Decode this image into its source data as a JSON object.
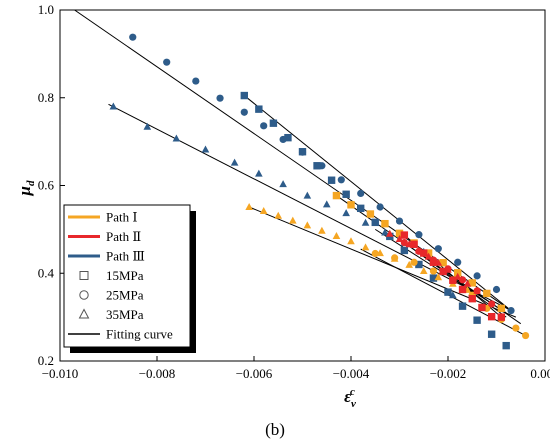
{
  "chart_data": {
    "type": "scatter",
    "title": "",
    "panel_label": "(b)",
    "xlabel": {
      "main": "ε",
      "superscript": "c",
      "subscript": "v"
    },
    "ylabel": {
      "main": "μ",
      "subscript": "d"
    },
    "xlim": [
      -0.01,
      0.0
    ],
    "ylim": [
      0.2,
      1.0
    ],
    "x_ticks": [
      -0.01,
      -0.008,
      -0.006,
      -0.004,
      -0.002,
      0.0
    ],
    "x_tick_labels": [
      "−0.010",
      "−0.008",
      "−0.006",
      "−0.004",
      "−0.002",
      "0.000"
    ],
    "y_ticks": [
      0.2,
      0.4,
      0.6,
      0.8,
      1.0
    ],
    "y_tick_labels": [
      "0.2",
      "0.4",
      "0.6",
      "0.8",
      "1.0"
    ],
    "grid": false,
    "legend_placement": "lower-left",
    "colors": {
      "path1": "#F5A623",
      "path2": "#E8282B",
      "path3": "#2E5C8A",
      "fit": "#000000"
    },
    "legend": [
      {
        "label": "Path Ⅰ",
        "kind": "line",
        "color": "#F5A623"
      },
      {
        "label": "Path Ⅱ",
        "kind": "line",
        "color": "#E8282B"
      },
      {
        "label": "Path Ⅲ",
        "kind": "line",
        "color": "#2E5C8A"
      },
      {
        "label": "15MPa",
        "kind": "square"
      },
      {
        "label": "25MPa",
        "kind": "circle"
      },
      {
        "label": "35MPa",
        "kind": "triangle"
      },
      {
        "label": "Fitting curve",
        "kind": "fit"
      }
    ],
    "series": [
      {
        "path": "Path Ⅲ",
        "pressure": "15MPa",
        "marker": "square",
        "color": "#2E5C8A",
        "x": [
          -0.0062,
          -0.0059,
          -0.0056,
          -0.0053,
          -0.005,
          -0.0047,
          -0.0044,
          -0.0041,
          -0.0038,
          -0.0035,
          -0.0032,
          -0.0029,
          -0.0026,
          -0.0023,
          -0.002,
          -0.0017,
          -0.0014,
          -0.0011,
          -0.0008
        ],
        "y": [
          0.805,
          0.774,
          0.742,
          0.709,
          0.677,
          0.645,
          0.612,
          0.58,
          0.548,
          0.516,
          0.484,
          0.452,
          0.42,
          0.389,
          0.357,
          0.325,
          0.293,
          0.261,
          0.235
        ],
        "fit": [
          [
            -0.0062,
            0.805
          ],
          [
            -0.0007,
            0.315
          ]
        ]
      },
      {
        "path": "Path Ⅲ",
        "pressure": "25MPa",
        "marker": "circle",
        "color": "#2E5C8A",
        "x": [
          -0.0085,
          -0.0078,
          -0.0072,
          -0.0067,
          -0.0062,
          -0.0058,
          -0.0054,
          -0.005,
          -0.0046,
          -0.0042,
          -0.0038,
          -0.0034,
          -0.003,
          -0.0026,
          -0.0022,
          -0.0018,
          -0.0014,
          -0.001,
          -0.0007
        ],
        "y": [
          0.938,
          0.881,
          0.838,
          0.799,
          0.767,
          0.736,
          0.705,
          0.676,
          0.645,
          0.613,
          0.582,
          0.551,
          0.519,
          0.488,
          0.456,
          0.425,
          0.394,
          0.363,
          0.315
        ],
        "fit": [
          [
            -0.0097,
            1.0
          ],
          [
            -0.0007,
            0.315
          ]
        ]
      },
      {
        "path": "Path Ⅲ",
        "pressure": "35MPa",
        "marker": "triangle",
        "color": "#2E5C8A",
        "x": [
          -0.0089,
          -0.0082,
          -0.0076,
          -0.007,
          -0.0064,
          -0.0059,
          -0.0054,
          -0.0049,
          -0.0045,
          -0.0041,
          -0.0037,
          -0.0033,
          -0.0029,
          -0.0025,
          -0.0021,
          -0.0019
        ],
        "y": [
          0.78,
          0.734,
          0.707,
          0.682,
          0.652,
          0.627,
          0.603,
          0.577,
          0.557,
          0.537,
          0.515,
          0.493,
          0.469,
          0.449,
          0.423,
          0.35
        ],
        "fit": [
          [
            -0.009,
            0.785
          ],
          [
            -0.0007,
            0.315
          ]
        ]
      },
      {
        "path": "Path Ⅰ",
        "pressure": "15MPa",
        "marker": "square",
        "color": "#F5A623",
        "x": [
          -0.0043,
          -0.004,
          -0.0036,
          -0.0033,
          -0.003,
          -0.0027,
          -0.0024,
          -0.0021,
          -0.0018,
          -0.0015,
          -0.0012,
          -0.0009
        ],
        "y": [
          0.577,
          0.556,
          0.535,
          0.513,
          0.491,
          0.469,
          0.446,
          0.424,
          0.401,
          0.378,
          0.354,
          0.32
        ],
        "fit": [
          [
            -0.0043,
            0.577
          ],
          [
            -0.0005,
            0.285
          ]
        ]
      },
      {
        "path": "Path Ⅰ",
        "pressure": "25MPa",
        "marker": "circle",
        "color": "#F5A623",
        "x": [
          -0.0035,
          -0.0031,
          -0.0027,
          -0.0023,
          -0.0019,
          -0.0015,
          -0.0012,
          -0.0009,
          -0.0006,
          -0.0004
        ],
        "y": [
          0.445,
          0.435,
          0.425,
          0.405,
          0.385,
          0.35,
          0.32,
          0.295,
          0.275,
          0.258
        ],
        "fit": [
          [
            -0.0038,
            0.455
          ],
          [
            -0.0004,
            0.258
          ]
        ]
      },
      {
        "path": "Path Ⅰ",
        "pressure": "35MPa",
        "marker": "triangle",
        "color": "#F5A623",
        "x": [
          -0.0061,
          -0.0058,
          -0.0055,
          -0.0052,
          -0.0049,
          -0.0046,
          -0.0043,
          -0.004,
          -0.0037,
          -0.0034,
          -0.0031,
          -0.0028,
          -0.0025,
          -0.0022,
          -0.0019,
          -0.0016
        ],
        "y": [
          0.551,
          0.542,
          0.531,
          0.52,
          0.509,
          0.497,
          0.485,
          0.473,
          0.459,
          0.446,
          0.433,
          0.419,
          0.405,
          0.391,
          0.376,
          0.362
        ],
        "fit": [
          [
            -0.0061,
            0.551
          ],
          [
            -0.0006,
            0.3
          ]
        ]
      },
      {
        "path": "Path Ⅱ",
        "pressure": "15MPa",
        "marker": "square",
        "color": "#E8282B",
        "x": [
          -0.0029,
          -0.0027,
          -0.0025,
          -0.0023,
          -0.0021,
          -0.0019,
          -0.0017,
          -0.0015,
          -0.0013,
          -0.0011,
          -0.0009
        ],
        "y": [
          0.487,
          0.466,
          0.446,
          0.425,
          0.404,
          0.384,
          0.363,
          0.342,
          0.322,
          0.301,
          0.3
        ],
        "fit": [
          [
            -0.0029,
            0.487
          ],
          [
            -0.0009,
            0.3
          ]
        ]
      },
      {
        "path": "Path Ⅱ",
        "pressure": "25MPa",
        "marker": "circle",
        "color": "#E8282B",
        "x": [
          -0.0029,
          -0.0026,
          -0.0023,
          -0.002,
          -0.0017,
          -0.0014,
          -0.0011
        ],
        "y": [
          0.47,
          0.45,
          0.43,
          0.41,
          0.385,
          0.36,
          0.33
        ],
        "fit": [
          [
            -0.0029,
            0.47
          ],
          [
            -0.0008,
            0.3
          ]
        ]
      },
      {
        "path": "Path Ⅱ",
        "pressure": "35MPa",
        "marker": "triangle",
        "color": "#E8282B",
        "x": [
          -0.0032,
          -0.003,
          -0.0028,
          -0.0026,
          -0.0024,
          -0.0022,
          -0.002,
          -0.0018,
          -0.0016,
          -0.0014
        ],
        "y": [
          0.49,
          0.478,
          0.466,
          0.452,
          0.438,
          0.424,
          0.408,
          0.392,
          0.376,
          0.36
        ],
        "fit": [
          [
            -0.0035,
            0.5
          ],
          [
            -0.0008,
            0.31
          ]
        ]
      }
    ]
  }
}
